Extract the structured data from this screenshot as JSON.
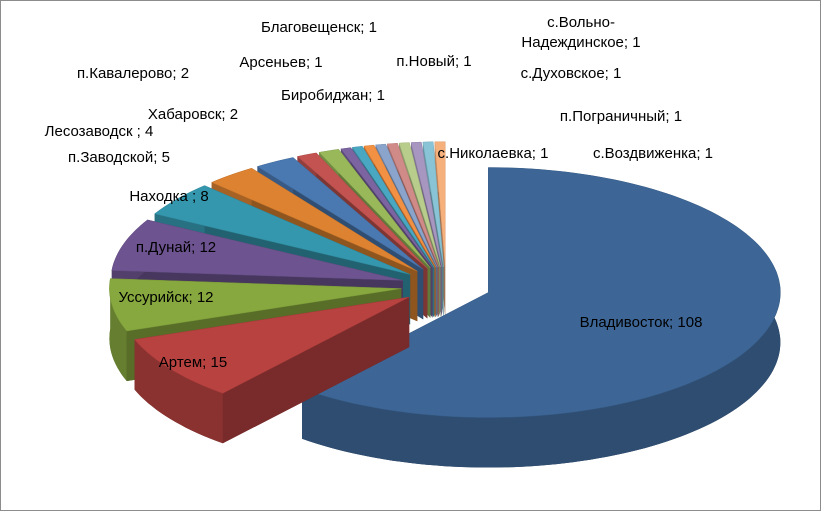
{
  "chart_data": {
    "type": "pie3d",
    "values": [
      108,
      15,
      12,
      12,
      8,
      5,
      4,
      2,
      2,
      1,
      1,
      1,
      1,
      1,
      1,
      1,
      1,
      1
    ],
    "value_labels": [
      "Владивосток; 108",
      "Артем; 15",
      "Уссурийск; 12",
      "п.Дунай; 12",
      "Находка ; 8",
      "п.Заводской; 5",
      "Лесозаводск ; 4",
      "Хабаровск; 2",
      "п.Кавалерово; 2",
      "Арсеньев; 1",
      "Биробиджан; 1",
      "Благовещенск; 1",
      "п.Новый; 1",
      "с.Вольно-Надеждинское; 1",
      "с.Духовское; 1",
      "п.Пограничный; 1",
      "с.Николаевка; 1",
      "с.Воздвиженка; 1"
    ],
    "colors": [
      "#3d6696",
      "#b84240",
      "#86a83e",
      "#6d5490",
      "#3497ad",
      "#dc8230",
      "#4a78b0",
      "#c25350",
      "#98b85a",
      "#7b64a0",
      "#4aa7c2",
      "#f29043",
      "#8aa4cc",
      "#d08a88",
      "#b8cc8c",
      "#a796c0",
      "#88c4d6",
      "#f5b07c"
    ]
  }
}
